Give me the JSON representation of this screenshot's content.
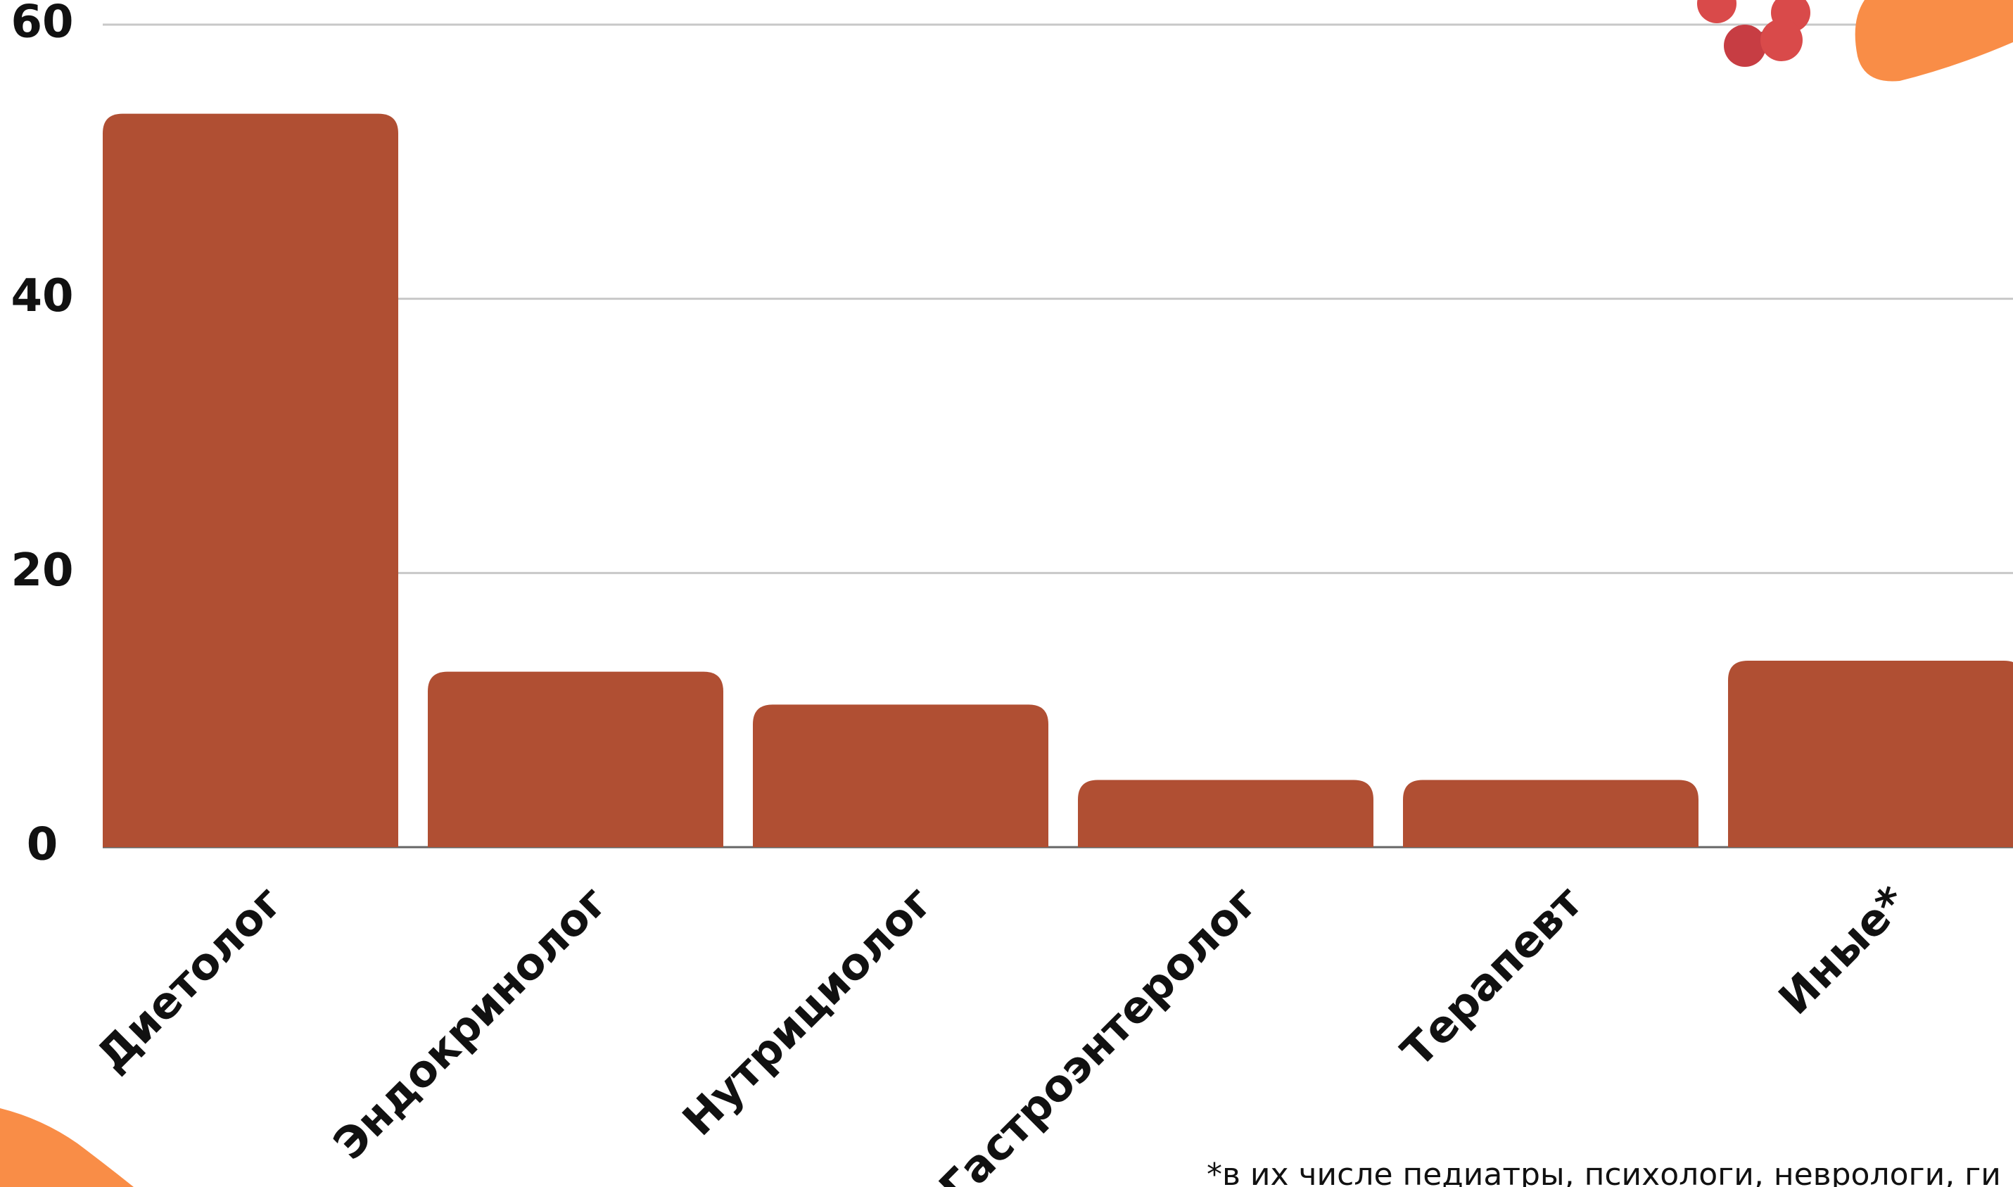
{
  "chart_data": {
    "type": "bar",
    "categories": [
      "Диетолог",
      "Эндокринолог",
      "Нутрициолог",
      "Гастроэнтеролог",
      "Терапевт",
      "Иные*"
    ],
    "values": [
      53.5,
      12.8,
      10.4,
      4.9,
      4.9,
      13.6
    ],
    "color": "#b04f33",
    "ylim": [
      0,
      60
    ],
    "yticks": [
      0,
      20,
      40,
      60
    ],
    "grid": true,
    "footnote": "*в их числе педиатры, психологи, неврологи, ги"
  }
}
